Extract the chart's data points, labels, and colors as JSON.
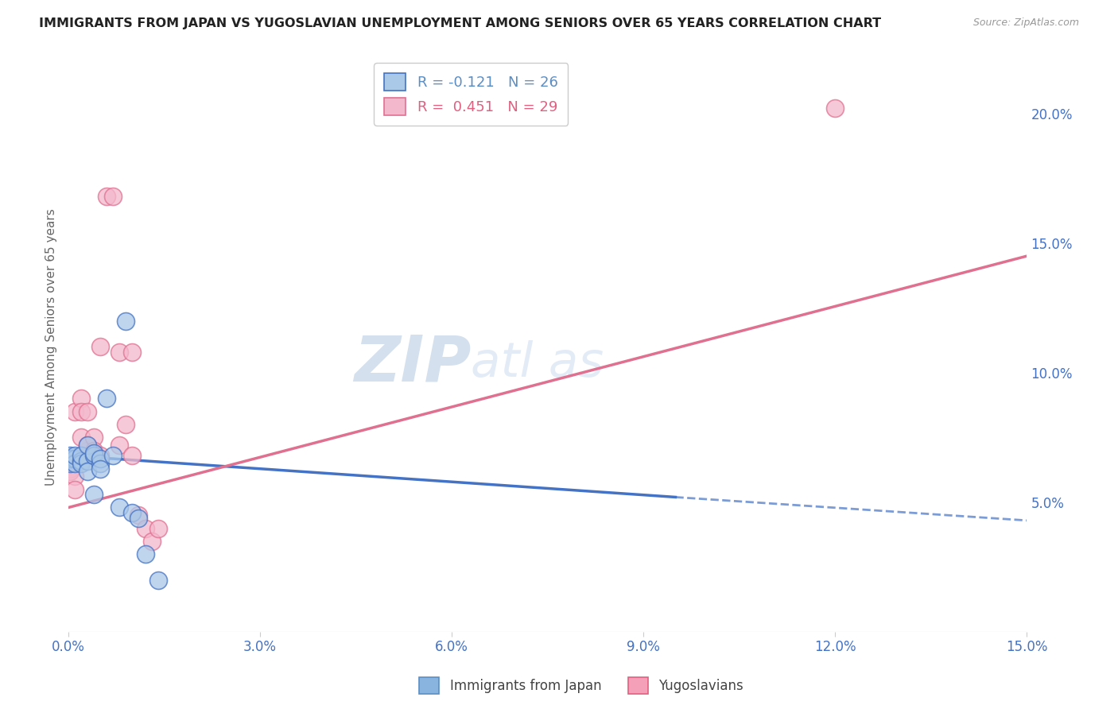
{
  "title": "IMMIGRANTS FROM JAPAN VS YUGOSLAVIAN UNEMPLOYMENT AMONG SENIORS OVER 65 YEARS CORRELATION CHART",
  "source": "Source: ZipAtlas.com",
  "ylabel": "Unemployment Among Seniors over 65 years",
  "right_yticks": [
    "20.0%",
    "15.0%",
    "10.0%",
    "5.0%"
  ],
  "right_ytick_vals": [
    0.2,
    0.15,
    0.1,
    0.05
  ],
  "watermark": "ZIPatlas",
  "legend_top": [
    {
      "label": "R = -0.121   N = 26",
      "color": "#5b8ec4"
    },
    {
      "label": "R =  0.451   N = 29",
      "color": "#e06080"
    }
  ],
  "legend_bottom": [
    {
      "label": "Immigrants from Japan",
      "color": "#8ab4e0",
      "edge": "#5b8ec4"
    },
    {
      "label": "Yugoslavians",
      "color": "#f4a0b8",
      "edge": "#e06080"
    }
  ],
  "xlim": [
    0.0,
    0.15
  ],
  "ylim": [
    0.0,
    0.22
  ],
  "japan_scatter": [
    [
      0.0002,
      0.068
    ],
    [
      0.0003,
      0.065
    ],
    [
      0.0005,
      0.067
    ],
    [
      0.001,
      0.067
    ],
    [
      0.001,
      0.065
    ],
    [
      0.001,
      0.068
    ],
    [
      0.002,
      0.066
    ],
    [
      0.002,
      0.065
    ],
    [
      0.002,
      0.068
    ],
    [
      0.003,
      0.066
    ],
    [
      0.003,
      0.062
    ],
    [
      0.003,
      0.072
    ],
    [
      0.004,
      0.068
    ],
    [
      0.004,
      0.053
    ],
    [
      0.004,
      0.069
    ],
    [
      0.005,
      0.065
    ],
    [
      0.005,
      0.067
    ],
    [
      0.005,
      0.063
    ],
    [
      0.006,
      0.09
    ],
    [
      0.007,
      0.068
    ],
    [
      0.008,
      0.048
    ],
    [
      0.009,
      0.12
    ],
    [
      0.01,
      0.046
    ],
    [
      0.011,
      0.044
    ],
    [
      0.012,
      0.03
    ],
    [
      0.014,
      0.02
    ]
  ],
  "yugo_scatter": [
    [
      0.0002,
      0.063
    ],
    [
      0.0003,
      0.062
    ],
    [
      0.0005,
      0.065
    ],
    [
      0.001,
      0.06
    ],
    [
      0.001,
      0.055
    ],
    [
      0.001,
      0.085
    ],
    [
      0.002,
      0.075
    ],
    [
      0.002,
      0.09
    ],
    [
      0.002,
      0.085
    ],
    [
      0.003,
      0.085
    ],
    [
      0.003,
      0.07
    ],
    [
      0.003,
      0.072
    ],
    [
      0.004,
      0.075
    ],
    [
      0.004,
      0.068
    ],
    [
      0.004,
      0.07
    ],
    [
      0.005,
      0.11
    ],
    [
      0.005,
      0.068
    ],
    [
      0.006,
      0.168
    ],
    [
      0.007,
      0.168
    ],
    [
      0.008,
      0.108
    ],
    [
      0.008,
      0.072
    ],
    [
      0.009,
      0.08
    ],
    [
      0.01,
      0.108
    ],
    [
      0.01,
      0.068
    ],
    [
      0.011,
      0.045
    ],
    [
      0.012,
      0.04
    ],
    [
      0.013,
      0.035
    ],
    [
      0.014,
      0.04
    ],
    [
      0.12,
      0.202
    ]
  ],
  "japan_line_solid": {
    "x": [
      0.0,
      0.095
    ],
    "y": [
      0.068,
      0.052
    ]
  },
  "japan_line_dash": {
    "x": [
      0.095,
      0.15
    ],
    "y": [
      0.052,
      0.043
    ]
  },
  "yugo_line": {
    "x": [
      0.0,
      0.15
    ],
    "y": [
      0.048,
      0.145
    ]
  },
  "japan_dot_color": "#aac8e8",
  "yugo_dot_color": "#f4b8cc",
  "japan_line_color": "#4472c4",
  "yugo_line_color": "#e07090",
  "scatter_size": 250,
  "background_color": "#ffffff",
  "grid_color": "#dddddd"
}
